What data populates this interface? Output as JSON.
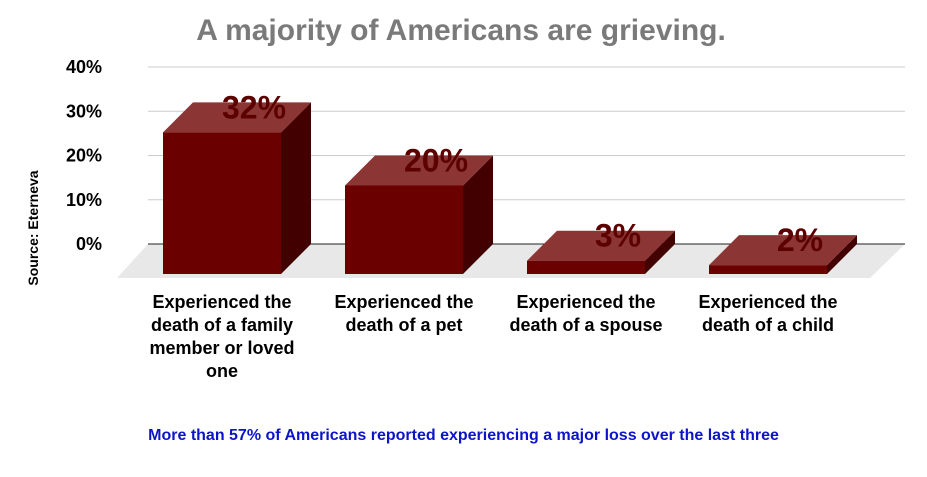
{
  "chart_data": {
    "type": "bar",
    "title": "A majority of Americans are grieving.",
    "ylabel": "Source: Eterneva",
    "ylim": [
      0,
      40
    ],
    "yticks": [
      "0%",
      "10%",
      "20%",
      "30%",
      "40%"
    ],
    "categories": [
      "Experienced the death of a family member or loved one",
      "Experienced the death of a pet",
      "Experienced the death of a spouse",
      "Experienced the death of a child"
    ],
    "values": [
      32,
      20,
      3,
      2
    ],
    "data_labels": [
      "32%",
      "20%",
      "3%",
      "2%"
    ],
    "grid": true,
    "note": "More than 57% of Americans reported experiencing a major loss over the last three",
    "colors": {
      "bar_front": "#6b0000",
      "bar_top": "#8b3535",
      "bar_side": "#420000",
      "floor": "#e8e8e8",
      "grid": "#cccccc",
      "note": "#0d14c8",
      "title": "#7a7a7a"
    }
  }
}
